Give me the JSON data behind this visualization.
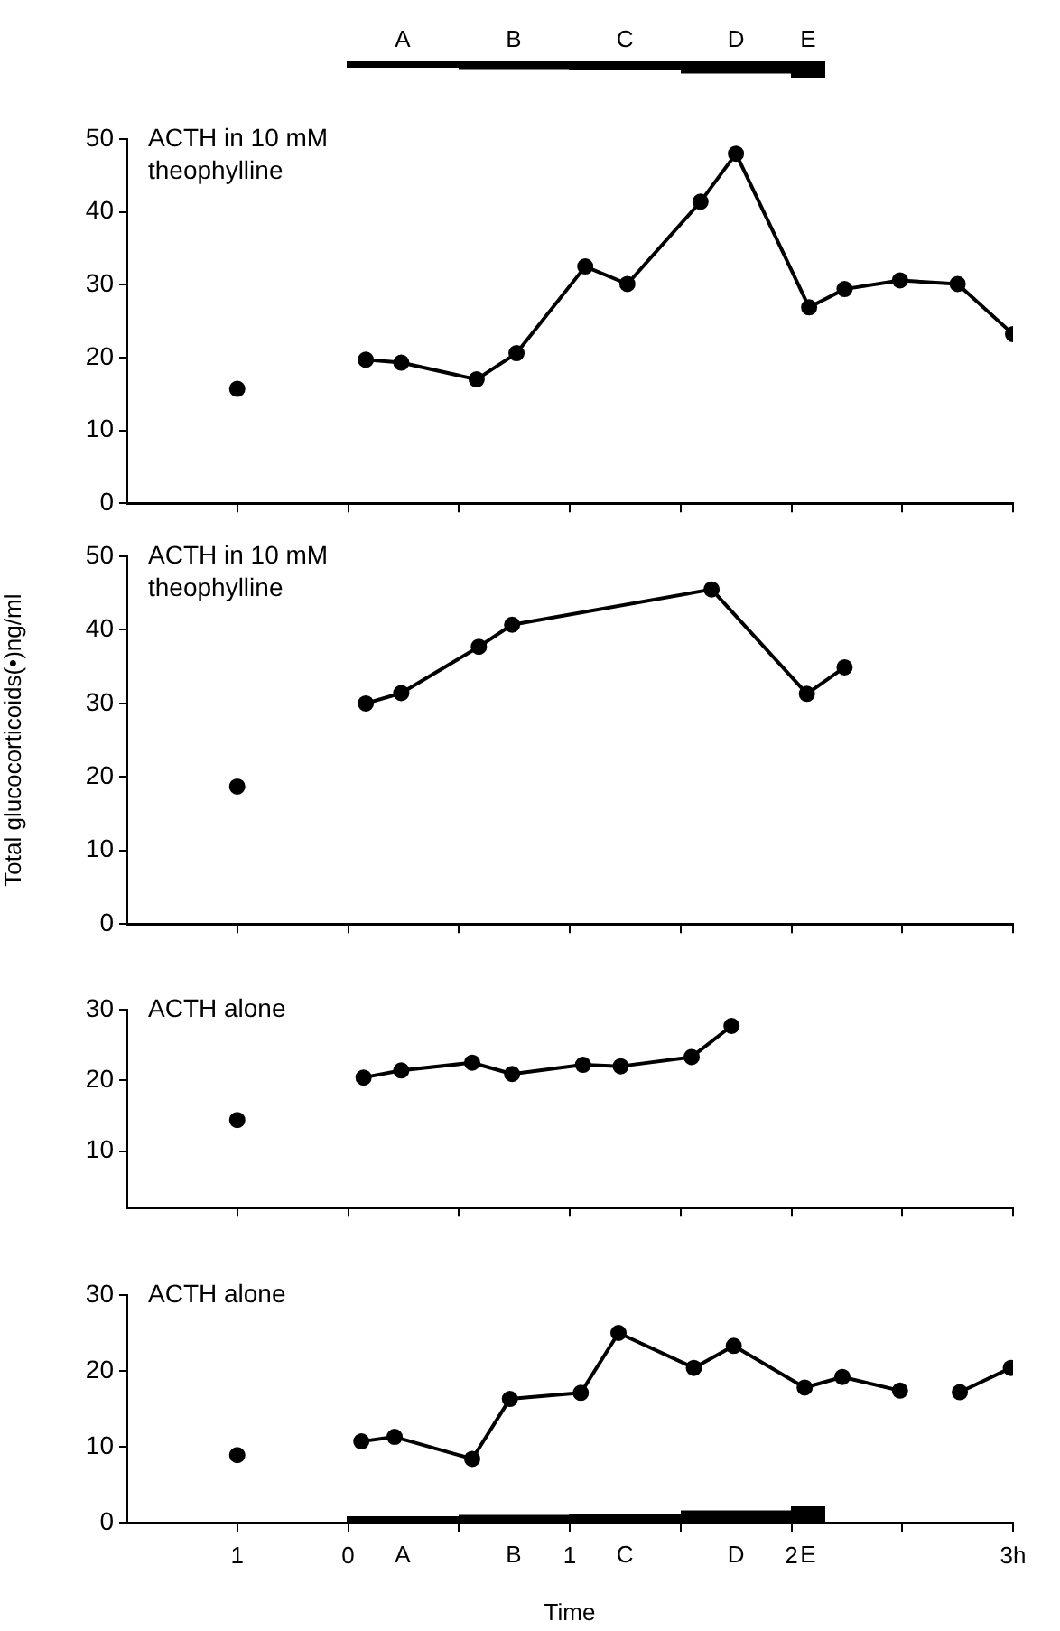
{
  "chart_data": [
    {
      "type": "line",
      "title": "ACTH in 10 mM\ntheophylline",
      "xlim": [
        -1,
        3
      ],
      "xticks": [
        {
          "value": -0.5,
          "label": null
        },
        {
          "value": 0,
          "label": null
        },
        {
          "value": 0.5,
          "label": null
        },
        {
          "value": 1,
          "label": null
        },
        {
          "value": 1.5,
          "label": null
        },
        {
          "value": 2,
          "label": null
        },
        {
          "value": 2.5,
          "label": null
        },
        {
          "value": 3,
          "label": null
        }
      ],
      "ylim": [
        0,
        50
      ],
      "yticks": [
        0,
        10,
        20,
        30,
        40,
        50
      ],
      "tick_labels": "y",
      "grid": false,
      "legend": false,
      "marker": "circle",
      "line_style": "solid",
      "annotations": [
        "A",
        "B",
        "C",
        "D",
        "E"
      ],
      "series": [
        {
          "type": "scatter",
          "color": "#000000",
          "x": [
            -0.5
          ],
          "values": [
            15.7
          ]
        },
        {
          "color": "#000000",
          "x": [
            0.08,
            0.24,
            0.58,
            0.76,
            1.07,
            1.26,
            1.59,
            1.75,
            2.08,
            2.24,
            2.49,
            2.75,
            3.0
          ],
          "values": [
            19.7,
            19.3,
            17.0,
            20.6,
            32.5,
            30.1,
            41.4,
            48.0,
            26.9,
            29.4,
            30.6,
            30.1,
            23.2
          ]
        }
      ]
    },
    {
      "type": "line",
      "title": "ACTH in 10 mM\ntheophylline",
      "ylabel": "Total glucocorticoids(•)ng/ml",
      "xlim": [
        -1,
        3
      ],
      "xticks": [
        {
          "value": -0.5,
          "label": null
        },
        {
          "value": 0,
          "label": null
        },
        {
          "value": 0.5,
          "label": null
        },
        {
          "value": 1,
          "label": null
        },
        {
          "value": 1.5,
          "label": null
        },
        {
          "value": 2,
          "label": null
        },
        {
          "value": 2.5,
          "label": null
        },
        {
          "value": 3,
          "label": null
        }
      ],
      "ylim": [
        0,
        50
      ],
      "yticks": [
        0,
        10,
        20,
        30,
        40,
        50
      ],
      "tick_labels": "y",
      "grid": false,
      "legend": false,
      "marker": "circle",
      "line_style": "solid",
      "series": [
        {
          "type": "scatter",
          "color": "#000000",
          "x": [
            -0.5
          ],
          "values": [
            18.7
          ]
        },
        {
          "color": "#000000",
          "x": [
            0.08,
            0.24,
            0.59,
            0.74,
            1.64,
            2.07,
            2.24
          ],
          "values": [
            30.0,
            31.4,
            37.7,
            40.7,
            45.5,
            31.3,
            34.9
          ]
        }
      ]
    },
    {
      "type": "line",
      "title": "ACTH alone",
      "xlim": [
        -1,
        3
      ],
      "xticks": [
        {
          "value": -0.5,
          "label": null
        },
        {
          "value": 0,
          "label": null
        },
        {
          "value": 0.5,
          "label": null
        },
        {
          "value": 1,
          "label": null
        },
        {
          "value": 1.5,
          "label": null
        },
        {
          "value": 2,
          "label": null
        },
        {
          "value": 2.5,
          "label": null
        },
        {
          "value": 3,
          "label": null
        }
      ],
      "ylim": [
        2,
        30
      ],
      "yticks": [
        10,
        20,
        30
      ],
      "tick_labels": "y",
      "grid": false,
      "legend": false,
      "marker": "circle",
      "line_style": "solid",
      "series": [
        {
          "type": "scatter",
          "color": "#000000",
          "x": [
            -0.5
          ],
          "values": [
            14.4
          ]
        },
        {
          "color": "#000000",
          "x": [
            0.07,
            0.24,
            0.56,
            0.74,
            1.06,
            1.23,
            1.55,
            1.73
          ],
          "values": [
            20.4,
            21.4,
            22.5,
            20.9,
            22.2,
            22.0,
            23.3,
            27.7
          ]
        }
      ]
    },
    {
      "type": "line",
      "title": "ACTH alone",
      "xlabel": "Time",
      "xlim": [
        -1,
        3
      ],
      "xticks": [
        {
          "value": -0.5,
          "label": "1"
        },
        0,
        {
          "value": 0.5,
          "label": null
        },
        1,
        {
          "value": 1.5,
          "label": null
        },
        2,
        {
          "value": 2.5,
          "label": null
        },
        {
          "value": 3,
          "label": "3h"
        }
      ],
      "ylim": [
        0,
        30
      ],
      "yticks": [
        0,
        10,
        20,
        30
      ],
      "grid": false,
      "legend": false,
      "marker": "circle",
      "line_style": "solid",
      "annotations": [
        "A",
        "B",
        "C",
        "D",
        "E"
      ],
      "series": [
        {
          "type": "scatter",
          "color": "#000000",
          "x": [
            -0.5
          ],
          "values": [
            8.9
          ]
        },
        {
          "color": "#000000",
          "x": [
            0.06,
            0.21,
            0.56,
            0.73,
            1.05,
            1.22,
            1.56,
            1.74,
            2.06,
            2.23,
            2.49
          ],
          "values": [
            10.7,
            11.3,
            8.4,
            16.3,
            17.1,
            25.0,
            20.4,
            23.3,
            17.8,
            19.2,
            17.4
          ]
        },
        {
          "color": "#000000",
          "x": [
            2.76,
            2.99
          ],
          "values": [
            17.2,
            20.4
          ]
        }
      ]
    }
  ]
}
